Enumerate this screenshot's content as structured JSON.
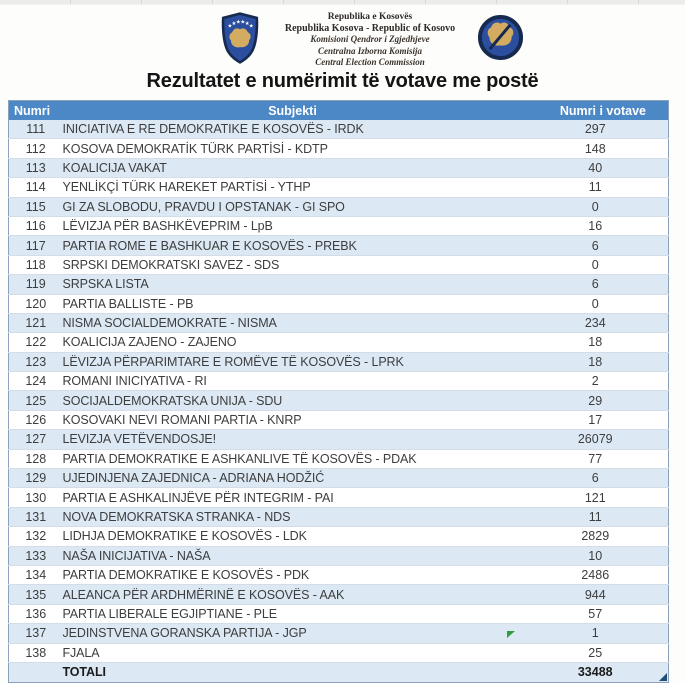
{
  "header": {
    "left_emblem": "kosovo-coat-of-arms",
    "right_emblem": "central-election-commission-seal",
    "institution_lines": [
      "Republika e Kosovës",
      "Republika Kosova - Republic of Kosovo",
      "Komisioni Qendror i Zgjedhjeve",
      "Centralna Izborna Komisija",
      "Central Election Commission"
    ]
  },
  "title": "Rezultatet e numërimit të votave me postë",
  "table": {
    "columns": [
      "Numri",
      "Subjekti",
      "Numri i votave"
    ],
    "rows": [
      [
        "111",
        "INICIATIVA E RE DEMOKRATIKE E KOSOVËS - IRDK",
        "297"
      ],
      [
        "112",
        "KOSOVA DEMOKRATİK TÜRK PARTİSİ - KDTP",
        "148"
      ],
      [
        "113",
        "KOALICIJA VAKAT",
        "40"
      ],
      [
        "114",
        "YENLİKÇİ TÜRK HAREKET PARTİSİ - YTHP",
        "11"
      ],
      [
        "115",
        "GI ZA SLOBODU, PRAVDU I OPSTANAK - GI SPO",
        "0"
      ],
      [
        "116",
        "LËVIZJA PËR BASHKËVEPRIM - LpB",
        "16"
      ],
      [
        "117",
        "PARTIA ROME E BASHKUAR E KOSOVËS - PREBK",
        "6"
      ],
      [
        "118",
        "SRPSKI DEMOKRATSKI SAVEZ - SDS",
        "0"
      ],
      [
        "119",
        "SRPSKA LISTA",
        "6"
      ],
      [
        "120",
        "PARTIA BALLISTE - PB",
        "0"
      ],
      [
        "121",
        "NISMA SOCIALDEMOKRATE - NISMA",
        "234"
      ],
      [
        "122",
        "KOALICIJA ZAJENO - ZAJENO",
        "18"
      ],
      [
        "123",
        "LËVIZJA PËRPARIMTARE E ROMËVE TË KOSOVËS - LPRK",
        "18"
      ],
      [
        "124",
        "ROMANI INICIYATIVA - RI",
        "2"
      ],
      [
        "125",
        "SOCIJALDEMOKRATSKA UNIJA - SDU",
        "29"
      ],
      [
        "126",
        "KOSOVAKI NEVI ROMANI PARTIA - KNRP",
        "17"
      ],
      [
        "127",
        "LEVIZJA VETËVENDOSJE!",
        "26079"
      ],
      [
        "128",
        "PARTIA DEMOKRATIKE E ASHKANLIVE TË KOSOVËS - PDAK",
        "77"
      ],
      [
        "129",
        "UJEDINJENA ZAJEDNICA - ADRIANA HODŽIĆ",
        "6"
      ],
      [
        "130",
        "PARTIA E ASHKALINJËVE PËR INTEGRIM - PAI",
        "121"
      ],
      [
        "131",
        "NOVA DEMOKRATSKA STRANKA - NDS",
        "11"
      ],
      [
        "132",
        "LIDHJA DEMOKRATIKE E KOSOVËS - LDK",
        "2829"
      ],
      [
        "133",
        "NAŠA INICIJATIVA - NAŠA",
        "10"
      ],
      [
        "134",
        "PARTIA DEMOKRATIKE E KOSOVËS - PDK",
        "2486"
      ],
      [
        "135",
        "ALEANCA PËR ARDHMËRINË E KOSOVËS - AAK",
        "944"
      ],
      [
        "136",
        "PARTIA LIBERALE EGJIPTIANE - PLE",
        "57"
      ],
      [
        "137",
        "JEDINSTVENA GORANSKA PARTIJA - JGP",
        "1"
      ],
      [
        "138",
        "FJALA",
        "25"
      ]
    ],
    "total": {
      "label": "TOTALI",
      "value": "33488"
    }
  },
  "colors": {
    "header_bg": "#4C87C6",
    "row_alt_bg": "#DCE9F5",
    "row_bg": "#FFFFFF",
    "flag_green": "#2E9E3E",
    "corner_blue": "#1F4E79",
    "emblem_navy": "#16294F",
    "emblem_blue": "#2B4F9E",
    "emblem_gold": "#D3AC62"
  }
}
